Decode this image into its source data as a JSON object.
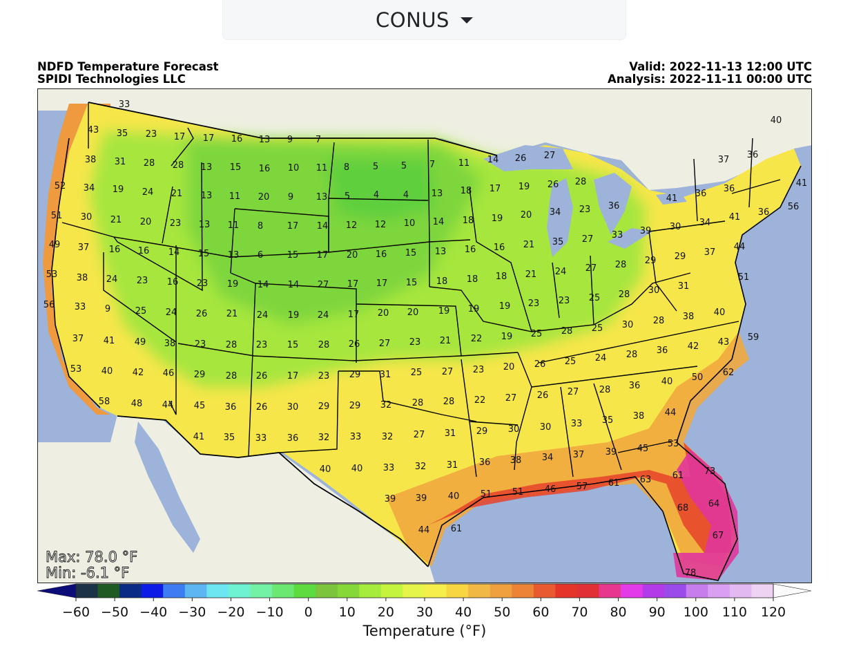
{
  "dropdown": {
    "selected": "CONUS",
    "icon": "caret-down-icon"
  },
  "header": {
    "title_line1": "NDFD Temperature Forecast",
    "title_line2": "SPIDI Technologies LLC",
    "valid": "Valid: 2022-11-13 12:00 UTC",
    "analysis": "Analysis: 2022-11-11 00:00 UTC"
  },
  "stats": {
    "max": "Max: 78.0 °F",
    "min": "Min: -6.1 °F"
  },
  "colorbar": {
    "label": "Temperature (°F)",
    "ticks": [
      "−60",
      "−50",
      "−40",
      "−30",
      "−20",
      "−10",
      "0",
      "10",
      "20",
      "30",
      "40",
      "50",
      "60",
      "70",
      "80",
      "90",
      "100",
      "110",
      "120"
    ],
    "colors": [
      "#0d0d7a",
      "#1b3347",
      "#1f5a23",
      "#0a2b85",
      "#0e1ce8",
      "#3d7cf2",
      "#5cb6f2",
      "#6de6f2",
      "#6ef2d2",
      "#73f2a6",
      "#6ae872",
      "#5edc3f",
      "#7bc43b",
      "#86d838",
      "#a6ec3c",
      "#c5f43f",
      "#e6f54a",
      "#f6ee4a",
      "#f8d641",
      "#f1b944",
      "#f0a03e",
      "#ec8336",
      "#e95a30",
      "#e5352a",
      "#e23136",
      "#e8378e",
      "#e33be7",
      "#b33be8",
      "#9b4bea",
      "#c87ded",
      "#d99ff0",
      "#e3b9f1",
      "#eed3f4",
      "#fafafa"
    ]
  },
  "map_labels": [
    [
      "33",
      180,
      150
    ],
    [
      "43",
      135,
      187
    ],
    [
      "35",
      177,
      192
    ],
    [
      "23",
      219,
      193
    ],
    [
      "17",
      260,
      197
    ],
    [
      "17",
      302,
      199
    ],
    [
      "16",
      343,
      200
    ],
    [
      "13",
      383,
      201
    ],
    [
      "9",
      420,
      201
    ],
    [
      "7",
      461,
      201
    ],
    [
      "38",
      131,
      230
    ],
    [
      "31",
      174,
      233
    ],
    [
      "28",
      216,
      235
    ],
    [
      "28",
      258,
      238
    ],
    [
      "13",
      299,
      241
    ],
    [
      "15",
      341,
      241
    ],
    [
      "16",
      383,
      243
    ],
    [
      "10",
      425,
      242
    ],
    [
      "11",
      466,
      242
    ],
    [
      "8",
      502,
      241
    ],
    [
      "5",
      544,
      240
    ],
    [
      "5",
      585,
      239
    ],
    [
      "7",
      626,
      237
    ],
    [
      "11",
      672,
      235
    ],
    [
      "14",
      714,
      230
    ],
    [
      "26",
      754,
      228
    ],
    [
      "27",
      796,
      224
    ],
    [
      "36",
      1090,
      223
    ],
    [
      "37",
      1048,
      230
    ],
    [
      "40",
      1124,
      173
    ],
    [
      "52",
      87,
      268
    ],
    [
      "34",
      129,
      271
    ],
    [
      "19",
      171,
      273
    ],
    [
      "24",
      214,
      277
    ],
    [
      "21",
      256,
      279
    ],
    [
      "13",
      299,
      282
    ],
    [
      "11",
      340,
      283
    ],
    [
      "20",
      382,
      284
    ],
    [
      "9",
      421,
      284
    ],
    [
      "13",
      466,
      284
    ],
    [
      "5",
      503,
      283
    ],
    [
      "4",
      545,
      281
    ],
    [
      "4",
      588,
      281
    ],
    [
      "13",
      633,
      279
    ],
    [
      "18",
      675,
      275
    ],
    [
      "17",
      717,
      272
    ],
    [
      "19",
      759,
      269
    ],
    [
      "26",
      801,
      266
    ],
    [
      "28",
      841,
      262
    ],
    [
      "41",
      1161,
      264
    ],
    [
      "41",
      973,
      286
    ],
    [
      "36",
      1015,
      279
    ],
    [
      "36",
      1056,
      272
    ],
    [
      "51",
      82,
      311
    ],
    [
      "30",
      125,
      313
    ],
    [
      "21",
      168,
      317
    ],
    [
      "20",
      211,
      320
    ],
    [
      "23",
      254,
      322
    ],
    [
      "13",
      296,
      324
    ],
    [
      "11",
      338,
      325
    ],
    [
      "8",
      377,
      326
    ],
    [
      "17",
      424,
      326
    ],
    [
      "14",
      467,
      326
    ],
    [
      "12",
      509,
      325
    ],
    [
      "12",
      551,
      324
    ],
    [
      "10",
      593,
      322
    ],
    [
      "14",
      635,
      320
    ],
    [
      "18",
      678,
      318
    ],
    [
      "19",
      720,
      315
    ],
    [
      "20",
      762,
      310
    ],
    [
      "34",
      804,
      306
    ],
    [
      "23",
      847,
      302
    ],
    [
      "36",
      889,
      297
    ],
    [
      "56",
      1149,
      298
    ],
    [
      "36",
      1106,
      306
    ],
    [
      "41",
      1064,
      313
    ],
    [
      "34",
      1021,
      321
    ],
    [
      "30",
      978,
      327
    ],
    [
      "39",
      935,
      333
    ],
    [
      "33",
      894,
      339
    ],
    [
      "49",
      79,
      353
    ],
    [
      "37",
      121,
      357
    ],
    [
      "16",
      166,
      360
    ],
    [
      "16",
      208,
      362
    ],
    [
      "14",
      252,
      364
    ],
    [
      "15",
      295,
      366
    ],
    [
      "13",
      338,
      368
    ],
    [
      "6",
      377,
      368
    ],
    [
      "15",
      424,
      368
    ],
    [
      "17",
      467,
      368
    ],
    [
      "20",
      510,
      368
    ],
    [
      "16",
      552,
      367
    ],
    [
      "15",
      595,
      365
    ],
    [
      "13",
      638,
      363
    ],
    [
      "16",
      681,
      360
    ],
    [
      "16",
      723,
      357
    ],
    [
      "21",
      766,
      353
    ],
    [
      "35",
      808,
      349
    ],
    [
      "27",
      851,
      345
    ],
    [
      "44",
      1071,
      356
    ],
    [
      "37",
      1028,
      364
    ],
    [
      "29",
      985,
      370
    ],
    [
      "29",
      942,
      376
    ],
    [
      "28",
      899,
      382
    ],
    [
      "27",
      856,
      387
    ],
    [
      "53",
      75,
      396
    ],
    [
      "38",
      119,
      401
    ],
    [
      "24",
      162,
      403
    ],
    [
      "23",
      206,
      405
    ],
    [
      "16",
      250,
      407
    ],
    [
      "23",
      293,
      409
    ],
    [
      "19",
      337,
      410
    ],
    [
      "14",
      381,
      411
    ],
    [
      "14",
      425,
      411
    ],
    [
      "27",
      468,
      411
    ],
    [
      "17",
      511,
      410
    ],
    [
      "17",
      553,
      409
    ],
    [
      "15",
      596,
      408
    ],
    [
      "18",
      640,
      406
    ],
    [
      "18",
      684,
      403
    ],
    [
      "18",
      726,
      399
    ],
    [
      "21",
      769,
      396
    ],
    [
      "24",
      812,
      392
    ],
    [
      "51",
      1077,
      400
    ],
    [
      "31",
      990,
      413
    ],
    [
      "30",
      947,
      419
    ],
    [
      "28",
      904,
      425
    ],
    [
      "25",
      861,
      430
    ],
    [
      "56",
      71,
      440
    ],
    [
      "33",
      116,
      443
    ],
    [
      "9",
      156,
      446
    ],
    [
      "25",
      204,
      449
    ],
    [
      "24",
      248,
      451
    ],
    [
      "26",
      292,
      453
    ],
    [
      "21",
      336,
      453
    ],
    [
      "24",
      380,
      455
    ],
    [
      "19",
      425,
      455
    ],
    [
      "24",
      468,
      455
    ],
    [
      "17",
      512,
      454
    ],
    [
      "20",
      555,
      452
    ],
    [
      "20",
      598,
      451
    ],
    [
      "19",
      643,
      449
    ],
    [
      "19",
      686,
      446
    ],
    [
      "19",
      731,
      442
    ],
    [
      "23",
      773,
      438
    ],
    [
      "23",
      817,
      434
    ],
    [
      "40",
      1042,
      451
    ],
    [
      "38",
      997,
      457
    ],
    [
      "28",
      954,
      463
    ],
    [
      "30",
      909,
      469
    ],
    [
      "25",
      865,
      474
    ],
    [
      "28",
      821,
      478
    ],
    [
      "25",
      777,
      482
    ],
    [
      "37",
      113,
      489
    ],
    [
      "41",
      158,
      492
    ],
    [
      "49",
      203,
      494
    ],
    [
      "38",
      246,
      496
    ],
    [
      "23",
      290,
      497
    ],
    [
      "28",
      335,
      498
    ],
    [
      "23",
      379,
      498
    ],
    [
      "15",
      424,
      498
    ],
    [
      "28",
      469,
      498
    ],
    [
      "26",
      513,
      497
    ],
    [
      "27",
      557,
      496
    ],
    [
      "23",
      601,
      494
    ],
    [
      "21",
      645,
      492
    ],
    [
      "22",
      690,
      489
    ],
    [
      "19",
      734,
      486
    ],
    [
      "59",
      1091,
      487
    ],
    [
      "43",
      1048,
      494
    ],
    [
      "42",
      1004,
      500
    ],
    [
      "36",
      959,
      506
    ],
    [
      "28",
      915,
      512
    ],
    [
      "24",
      870,
      517
    ],
    [
      "25",
      826,
      522
    ],
    [
      "26",
      782,
      526
    ],
    [
      "53",
      110,
      533
    ],
    [
      "40",
      155,
      536
    ],
    [
      "42",
      200,
      538
    ],
    [
      "46",
      244,
      539
    ],
    [
      "29",
      289,
      541
    ],
    [
      "28",
      335,
      543
    ],
    [
      "26",
      379,
      543
    ],
    [
      "17",
      424,
      543
    ],
    [
      "23",
      469,
      543
    ],
    [
      "29",
      514,
      541
    ],
    [
      "31",
      558,
      541
    ],
    [
      "25",
      603,
      538
    ],
    [
      "27",
      648,
      537
    ],
    [
      "23",
      693,
      534
    ],
    [
      "20",
      737,
      530
    ],
    [
      "62",
      1055,
      538
    ],
    [
      "50",
      1010,
      545
    ],
    [
      "40",
      966,
      551
    ],
    [
      "36",
      919,
      557
    ],
    [
      "28",
      876,
      563
    ],
    [
      "27",
      830,
      566
    ],
    [
      "26",
      786,
      571
    ],
    [
      "58",
      151,
      580
    ],
    [
      "48",
      198,
      583
    ],
    [
      "44",
      243,
      585
    ],
    [
      "45",
      289,
      586
    ],
    [
      "36",
      334,
      588
    ],
    [
      "26",
      379,
      588
    ],
    [
      "30",
      424,
      588
    ],
    [
      "29",
      469,
      587
    ],
    [
      "29",
      514,
      586
    ],
    [
      "32",
      559,
      585
    ],
    [
      "28",
      605,
      582
    ],
    [
      "28",
      650,
      580
    ],
    [
      "22",
      695,
      578
    ],
    [
      "27",
      740,
      575
    ],
    [
      "44",
      971,
      596
    ],
    [
      "38",
      925,
      601
    ],
    [
      "35",
      880,
      607
    ],
    [
      "33",
      835,
      612
    ],
    [
      "30",
      790,
      617
    ],
    [
      "41",
      288,
      631
    ],
    [
      "35",
      332,
      632
    ],
    [
      "33",
      378,
      633
    ],
    [
      "36",
      424,
      633
    ],
    [
      "32",
      469,
      632
    ],
    [
      "33",
      515,
      631
    ],
    [
      "32",
      561,
      631
    ],
    [
      "27",
      607,
      628
    ],
    [
      "31",
      652,
      626
    ],
    [
      "29",
      698,
      623
    ],
    [
      "30",
      744,
      620
    ],
    [
      "53",
      975,
      641
    ],
    [
      "45",
      931,
      648
    ],
    [
      "39",
      885,
      653
    ],
    [
      "37",
      838,
      657
    ],
    [
      "34",
      793,
      661
    ],
    [
      "38",
      747,
      665
    ],
    [
      "36",
      702,
      668
    ],
    [
      "40",
      471,
      678
    ],
    [
      "40",
      517,
      677
    ],
    [
      "33",
      563,
      676
    ],
    [
      "32",
      609,
      674
    ],
    [
      "31",
      655,
      672
    ],
    [
      "73",
      1028,
      681
    ],
    [
      "61",
      982,
      687
    ],
    [
      "63",
      935,
      693
    ],
    [
      "61",
      889,
      698
    ],
    [
      "57",
      843,
      703
    ],
    [
      "46",
      797,
      707
    ],
    [
      "51",
      750,
      711
    ],
    [
      "51",
      704,
      714
    ],
    [
      "39",
      565,
      721
    ],
    [
      "39",
      610,
      720
    ],
    [
      "40",
      657,
      717
    ],
    [
      "64",
      1034,
      728
    ],
    [
      "68",
      989,
      734
    ],
    [
      "44",
      614,
      766
    ],
    [
      "61",
      661,
      764
    ],
    [
      "67",
      1040,
      774
    ],
    [
      "78",
      1000,
      828
    ]
  ]
}
